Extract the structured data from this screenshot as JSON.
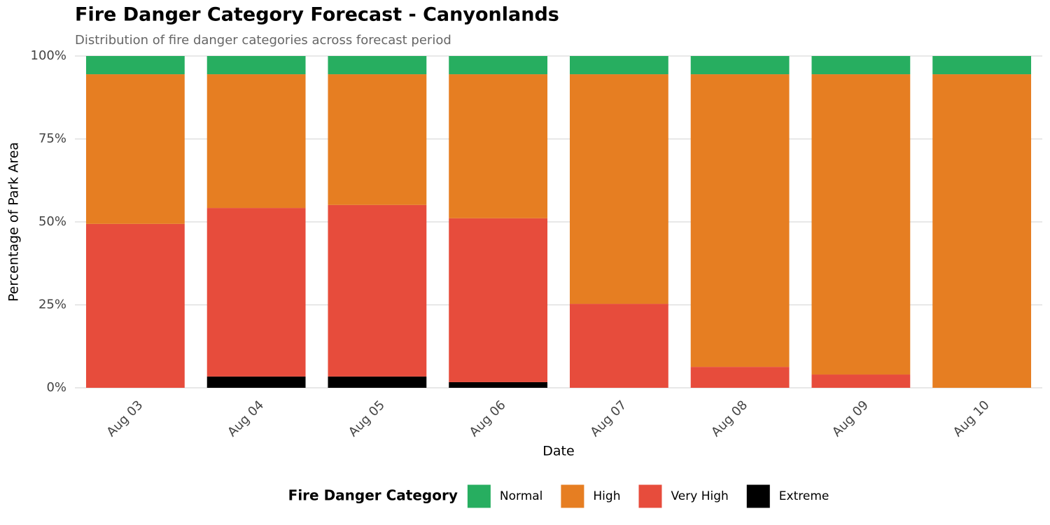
{
  "chart_data": {
    "type": "stacked_bar",
    "title": "Fire Danger Category Forecast - Canyonlands",
    "subtitle": "Distribution of fire danger categories across forecast period",
    "x_label": "Date",
    "y_label": "Percentage of Park Area",
    "legend_title": "Fire Danger Category",
    "legend_position": "bottom",
    "grid": true,
    "categories": [
      "Aug 03",
      "Aug 04",
      "Aug 05",
      "Aug 06",
      "Aug 07",
      "Aug 08",
      "Aug 09",
      "Aug 10"
    ],
    "series": [
      {
        "name": "Normal",
        "color": "#27ae60",
        "values": [
          5.5,
          5.5,
          5.5,
          5.5,
          5.5,
          5.5,
          5.5,
          5.5
        ]
      },
      {
        "name": "High",
        "color": "#e67e22",
        "values": [
          45.1,
          40.3,
          39.4,
          43.4,
          69.2,
          88.2,
          90.5,
          94.5
        ]
      },
      {
        "name": "Very High",
        "color": "#e74c3c",
        "values": [
          49.4,
          50.8,
          51.7,
          49.4,
          25.3,
          6.3,
          4.0,
          0
        ]
      },
      {
        "name": "Extreme",
        "color": "#000000",
        "values": [
          0,
          3.4,
          3.4,
          1.7,
          0,
          0,
          0,
          0
        ]
      }
    ],
    "ylim": [
      0,
      100
    ],
    "yticks": [
      {
        "value": 0,
        "label": "0%"
      },
      {
        "value": 25,
        "label": "25%"
      },
      {
        "value": 50,
        "label": "50%"
      },
      {
        "value": 75,
        "label": "75%"
      },
      {
        "value": 100,
        "label": "100%"
      }
    ]
  }
}
